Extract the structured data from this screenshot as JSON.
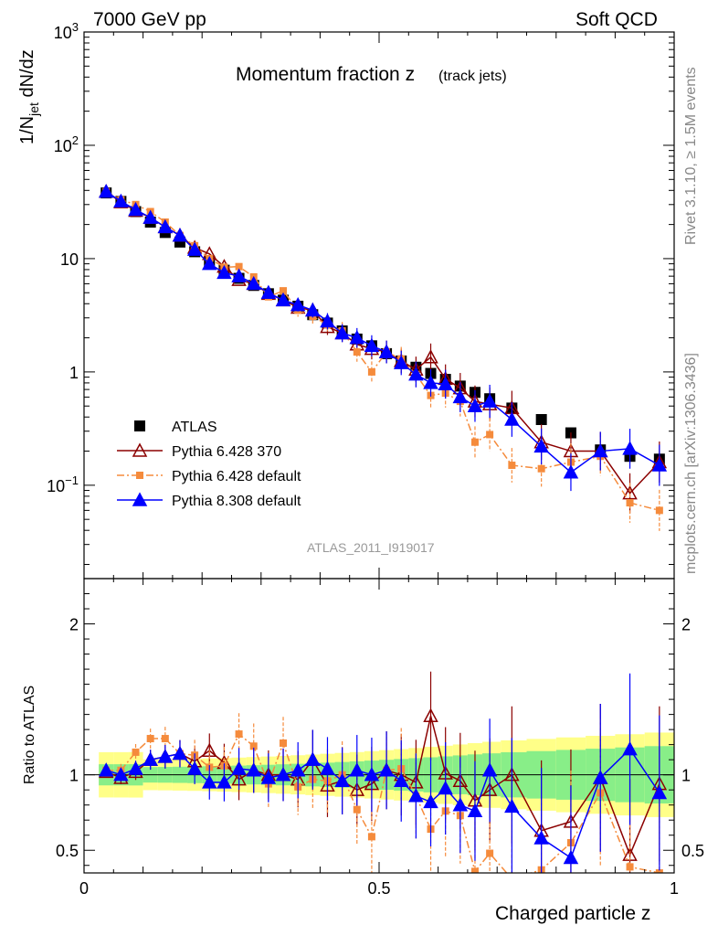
{
  "header": {
    "left": "7000 GeV pp",
    "right": "Soft QCD"
  },
  "side_labels": {
    "rivet": "Rivet 3.1.10, ≥ 1.5M events",
    "mcplots": "mcplots.cern.ch [arXiv:1306.3436]"
  },
  "plot": {
    "title": "Momentum fraction z",
    "title_sub": "(track jets)",
    "analysis": "ATLAS_2011_I919017",
    "ylabel_main": "1/N",
    "ylabel_sub": "jet",
    "ylabel_tail": " dN/dz",
    "ylabel_ratio": "Ratio to ATLAS",
    "xlabel": "Charged particle z"
  },
  "chart_data": {
    "type": "scatter",
    "x": [
      0.0375,
      0.0625,
      0.0875,
      0.1125,
      0.1375,
      0.1625,
      0.1875,
      0.2125,
      0.2375,
      0.2625,
      0.2875,
      0.3125,
      0.3375,
      0.3625,
      0.3875,
      0.4125,
      0.4375,
      0.4625,
      0.4875,
      0.5125,
      0.5375,
      0.5625,
      0.5875,
      0.6125,
      0.6375,
      0.6625,
      0.6875,
      0.725,
      0.775,
      0.825,
      0.875,
      0.925,
      0.975
    ],
    "xlim": [
      0,
      1.0
    ],
    "ylim_main": [
      0.015,
      1000
    ],
    "yscale_main": "log",
    "ylim_ratio": [
      0.35,
      2.3
    ],
    "x_ticks": [
      "0",
      "0.5",
      "1"
    ],
    "y_ticks_main": [
      "10^-1",
      "1",
      "10",
      "10^2",
      "10^3"
    ],
    "y_ticks_ratio": [
      "0.5",
      "1",
      "2"
    ],
    "legend_position": "middle-left",
    "series": [
      {
        "name": "ATLAS",
        "color": "#000000",
        "marker": "square",
        "values": [
          38,
          32,
          26,
          21,
          17,
          14,
          11.5,
          9.5,
          7.9,
          6.7,
          5.8,
          4.9,
          4.3,
          3.8,
          3.2,
          2.7,
          2.3,
          1.95,
          1.7,
          1.45,
          1.25,
          1.1,
          0.97,
          0.86,
          0.75,
          0.66,
          0.58,
          0.48,
          0.38,
          0.29,
          0.205,
          0.18,
          0.17
        ]
      },
      {
        "name": "Pythia 6.428 370",
        "color": "#8b0000",
        "marker": "triangle-open",
        "line": "solid",
        "values": [
          39,
          31.5,
          26.5,
          23,
          19,
          16,
          12.5,
          11,
          8.5,
          6.5,
          6.0,
          4.9,
          4.3,
          3.7,
          3.5,
          2.5,
          2.2,
          1.75,
          1.6,
          1.5,
          1.25,
          1.05,
          1.35,
          0.87,
          0.72,
          0.55,
          0.52,
          0.48,
          0.24,
          0.2,
          0.2,
          0.085,
          0.16
        ],
        "ratio": [
          1.02,
          0.98,
          1.02,
          1.1,
          1.12,
          1.14,
          1.09,
          1.16,
          1.08,
          0.97,
          1.03,
          1.0,
          1.0,
          0.97,
          1.1,
          0.93,
          0.96,
          0.9,
          0.94,
          1.03,
          1.0,
          0.95,
          1.39,
          1.01,
          0.96,
          0.83,
          0.9,
          1.0,
          0.63,
          0.69,
          0.98,
          0.47,
          0.94
        ]
      },
      {
        "name": "Pythia 6.428 default",
        "color": "#f58b3c",
        "marker": "square-small",
        "line": "dashdot",
        "values": [
          39,
          33,
          30,
          26,
          21,
          16,
          13,
          10,
          8.4,
          8.5,
          6.9,
          4.6,
          5.2,
          3.5,
          3.1,
          2.6,
          2.3,
          1.5,
          1.0,
          1.5,
          1.3,
          0.95,
          0.62,
          0.65,
          0.55,
          0.24,
          0.28,
          0.15,
          0.14,
          0.16,
          0.18,
          0.07,
          0.06
        ],
        "ratio": [
          1.03,
          1.03,
          1.15,
          1.24,
          1.24,
          1.14,
          1.13,
          1.05,
          1.06,
          1.27,
          1.19,
          0.94,
          1.21,
          0.92,
          0.97,
          0.96,
          1.0,
          0.77,
          0.59,
          1.03,
          1.04,
          0.86,
          0.64,
          0.76,
          0.73,
          0.36,
          0.48,
          0.31,
          0.37,
          0.55,
          0.88,
          0.39,
          0.35
        ]
      },
      {
        "name": "Pythia 8.308 default",
        "color": "#0000ff",
        "marker": "triangle",
        "line": "solid",
        "values": [
          39,
          32,
          27,
          23,
          19,
          16,
          12,
          9,
          7.5,
          7,
          6,
          5,
          4.3,
          3.9,
          3.5,
          2.8,
          2.2,
          2.0,
          1.7,
          1.5,
          1.2,
          0.95,
          0.8,
          0.78,
          0.6,
          0.5,
          0.55,
          0.38,
          0.22,
          0.13,
          0.2,
          0.21,
          0.15
        ],
        "ratio": [
          1.03,
          1.0,
          1.04,
          1.1,
          1.12,
          1.14,
          1.04,
          0.95,
          0.95,
          1.04,
          1.03,
          0.98,
          1.0,
          1.03,
          1.1,
          1.04,
          0.96,
          1.03,
          1.0,
          1.03,
          0.96,
          0.86,
          0.82,
          0.91,
          0.8,
          0.76,
          1.03,
          0.79,
          0.58,
          0.45,
          0.98,
          1.17,
          0.88
        ]
      }
    ]
  }
}
